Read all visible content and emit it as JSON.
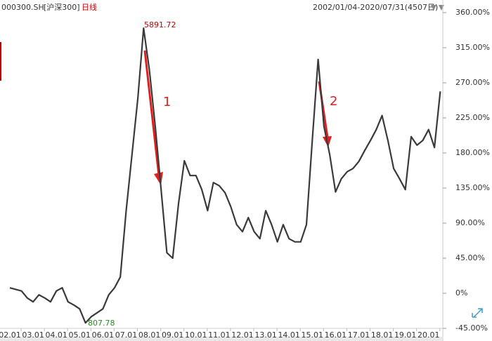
{
  "header": {
    "code": "000300.SH",
    "name": "[沪深300]",
    "period": "日线",
    "range": "2002/01/04-2020/07/31(4507日)"
  },
  "chart_data": {
    "type": "line",
    "categories": [
      "02.01",
      null,
      null,
      null,
      "03.01",
      null,
      null,
      null,
      "04.01",
      null,
      null,
      null,
      "05.01",
      null,
      null,
      null,
      "06.01",
      null,
      null,
      null,
      "07.01",
      null,
      null,
      null,
      "08.01",
      null,
      null,
      null,
      "09.01",
      null,
      null,
      null,
      "10.01",
      null,
      null,
      null,
      "11.01",
      null,
      null,
      null,
      "12.01",
      null,
      null,
      null,
      "13.01",
      null,
      null,
      null,
      "14.01",
      null,
      null,
      null,
      "15.01",
      null,
      null,
      null,
      "16.01",
      null,
      null,
      null,
      "17.01",
      null,
      null,
      null,
      "18.01",
      null,
      null,
      null,
      "19.01",
      null,
      null,
      null,
      "20.01",
      null,
      null
    ],
    "series": [
      {
        "name": "000300.SH",
        "color": "#3a3a3a",
        "values": [
          7,
          5,
          3,
          -6,
          -11,
          -2,
          -6,
          -11,
          3,
          7,
          -11,
          -15,
          -20,
          -38,
          -30,
          -25,
          -20,
          -2,
          7,
          21,
          106,
          178,
          250,
          340,
          286,
          214,
          133,
          52,
          45,
          115,
          170,
          151,
          151,
          133,
          106,
          142,
          138,
          129,
          111,
          88,
          79,
          97,
          79,
          70,
          106,
          88,
          66,
          88,
          70,
          66,
          66,
          88,
          196,
          300,
          214,
          178,
          130,
          147,
          156,
          160,
          169,
          183,
          196,
          210,
          228,
          196,
          160,
          147,
          133,
          201,
          190,
          196,
          210,
          187,
          259
        ]
      }
    ],
    "ylim": [
      -45,
      360
    ],
    "yticks": [
      {
        "value": 360,
        "label": "360.00%"
      },
      {
        "value": 315,
        "label": "315.00%"
      },
      {
        "value": 270,
        "label": "270.00%"
      },
      {
        "value": 225,
        "label": "225.00%"
      },
      {
        "value": 180,
        "label": "180.00%"
      },
      {
        "value": 135,
        "label": "135.00%"
      },
      {
        "value": 90,
        "label": "90.00%"
      },
      {
        "value": 45,
        "label": "45.00%"
      },
      {
        "value": 0,
        "label": "0%"
      },
      {
        "value": -45,
        "label": "-45.00%"
      }
    ],
    "annotations": [
      "5891.72",
      "807.78",
      "1",
      "2"
    ]
  }
}
